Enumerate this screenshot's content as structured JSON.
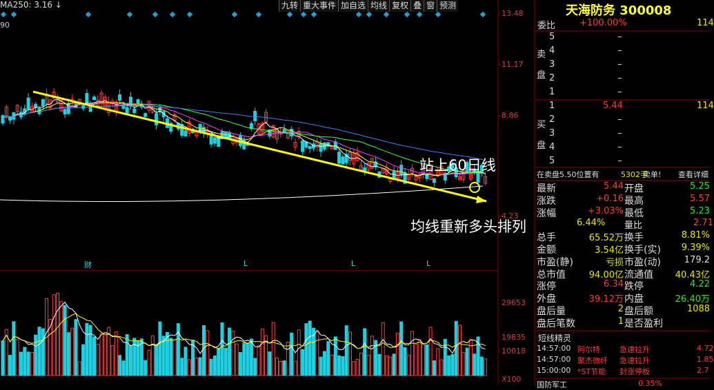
{
  "toolbar": {
    "ma_label": "MA250: 3.16",
    "arrow": "↓",
    "axis_fragment": "90",
    "buttons": [
      "九转",
      "重大事件",
      "加自选",
      "均线",
      "复权",
      "叠",
      "窗",
      "预测"
    ]
  },
  "price_axis": [
    "13.48",
    "11.17",
    "8.86",
    "4.23"
  ],
  "event_markers": [
    "财",
    "L",
    "L",
    "L"
  ],
  "volume_axis": [
    "29653",
    "19835",
    "10018",
    "X100"
  ],
  "annotations": [
    "站上60日线",
    "均线重新多头排列"
  ],
  "quote": {
    "title": "天海防务 300008",
    "ratio": {
      "label": "委比",
      "value": "+100.00%",
      "volume": "114"
    },
    "sell_label": [
      "卖",
      "盘"
    ],
    "sell_rows": [
      [
        "5",
        "–"
      ],
      [
        "4",
        "–"
      ],
      [
        "3",
        "–"
      ],
      [
        "2",
        "–"
      ],
      [
        "1",
        "–"
      ]
    ],
    "buy_label": [
      "买",
      "盘"
    ],
    "buy_rows": [
      [
        "1",
        "5.44",
        "114"
      ],
      [
        "2",
        "–"
      ],
      [
        "3",
        "–"
      ],
      [
        "4",
        "–"
      ],
      [
        "5",
        "–"
      ]
    ],
    "notice": {
      "text": "在卖盘5.50位置有",
      "volume": "5302手",
      "tag": "卖单!",
      "link": "查看详细"
    },
    "stats": [
      [
        "最新",
        "5.44",
        "开盘",
        "5.25"
      ],
      [
        "涨跌",
        "+0.16",
        "最高",
        "5.57"
      ],
      [
        "涨幅",
        "+3.03%",
        "最低",
        "5.23"
      ],
      [
        "6.44%",
        "量比",
        "2.71"
      ],
      [
        "总手",
        "65.52万",
        "换手",
        "8.81%"
      ],
      [
        "金额",
        "3.54亿",
        "换手(实)",
        "9.39%"
      ],
      [
        "市盈(静)",
        "亏损",
        "市盈(动)",
        "179.2"
      ],
      [
        "总市值",
        "94.00亿",
        "流通值",
        "40.43亿"
      ],
      [
        "涨停",
        "6.34",
        "跌停",
        "4.22"
      ],
      [
        "外盘",
        "39.12万",
        "内盘",
        "26.40万"
      ],
      [
        "盘后量",
        "2",
        "盘后额",
        "1088"
      ],
      [
        "盘后笔数",
        "1",
        "是否盈利"
      ]
    ],
    "sprite_title": "短线精灵",
    "sprites": [
      [
        "14:57:00",
        "阿尔特",
        "急速拉升",
        "4.72"
      ],
      [
        "14:57:00",
        "聚杰微纤",
        "急速拉升",
        "1.85"
      ],
      [
        "15:00:00",
        "*ST节能",
        "封涨停板",
        "2.7"
      ]
    ],
    "footer": [
      "国防军工",
      "0.35%"
    ]
  }
}
